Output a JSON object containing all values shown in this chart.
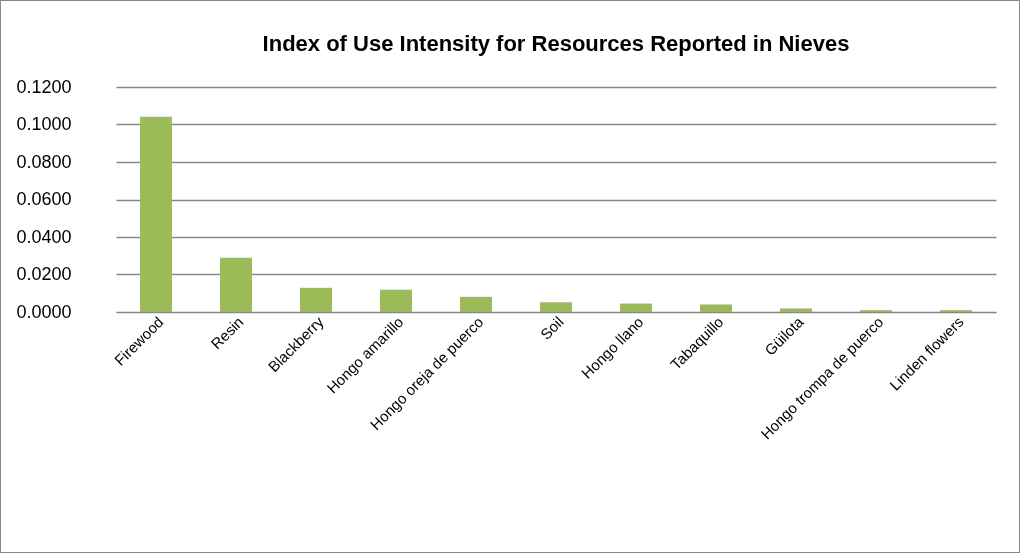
{
  "chart_data": {
    "type": "bar",
    "title": "Index of Use Intensity for Resources Reported in Nieves",
    "categories": [
      "Firewood",
      "Resin",
      "Blackberry",
      "Hongo amarillo",
      "Hongo oreja de puerco",
      "Soil",
      "Hongo llano",
      "Tabaquillo",
      "Güilota",
      "Hongo trompa de puerco",
      "Linden flowers"
    ],
    "values": [
      0.1042,
      0.0289,
      0.0129,
      0.0119,
      0.0081,
      0.0052,
      0.0045,
      0.004,
      0.0019,
      0.001,
      0.001
    ],
    "color": "#9bbb59",
    "ylim": [
      0,
      0.12
    ],
    "yticks": [
      {
        "value": 0,
        "label": "0.0000"
      },
      {
        "value": 0.02,
        "label": "0.0200"
      },
      {
        "value": 0.04,
        "label": "0.0400"
      },
      {
        "value": 0.06,
        "label": "0.0600"
      },
      {
        "value": 0.08,
        "label": "0.0800"
      },
      {
        "value": 0.1,
        "label": "0.1000"
      },
      {
        "value": 0.12,
        "label": "0.1200"
      }
    ],
    "grid": "y"
  }
}
